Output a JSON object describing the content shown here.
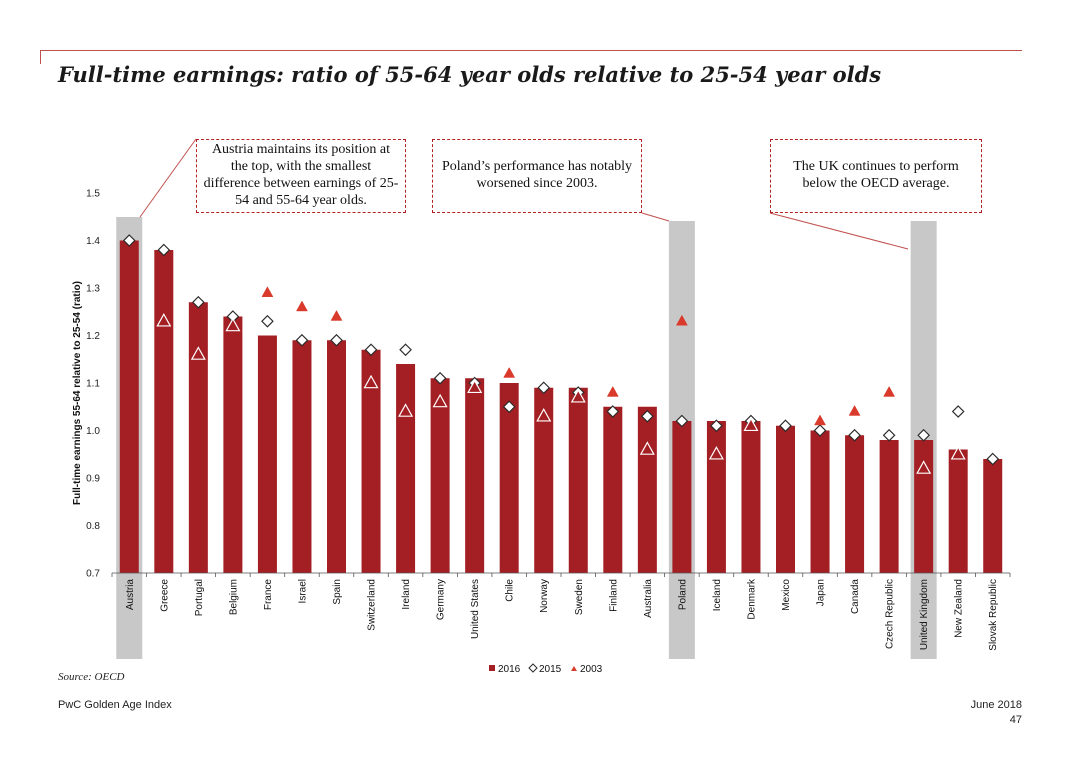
{
  "page": {
    "title": "Full-time earnings: ratio of 55-64 year olds relative to 25-54 year olds",
    "source": "Source: OECD",
    "footer_left": "PwC Golden Age Index",
    "footer_date": "June 2018",
    "page_number": "47"
  },
  "callouts": {
    "austria": "Austria maintains its position at the top, with the smallest difference between earnings of 25-54 and 55-64 year olds.",
    "poland": "Poland’s performance has notably worsened since 2003.",
    "uk": "The UK continues to perform below the OECD average."
  },
  "colors": {
    "bar_2016": "#a31f24",
    "marker_2003": "#d93a2b",
    "highlight": "#c8c8c8",
    "accent_line": "#c0504d"
  },
  "chart_data": {
    "type": "bar",
    "ylabel": "Full-time earnings 55-64 relative to 25-54 (ratio)",
    "xlabel": "",
    "ylim": [
      0.7,
      1.5
    ],
    "yticks": [
      "0.7",
      "0.8",
      "0.9",
      "1.0",
      "1.1",
      "1.2",
      "1.3",
      "1.4",
      "1.5"
    ],
    "grid": false,
    "legend_position": "bottom-center",
    "categories": [
      "Austria",
      "Greece",
      "Portugal",
      "Belgium",
      "France",
      "Israel",
      "Spain",
      "Switzerland",
      "Ireland",
      "Germany",
      "United States",
      "Chile",
      "Norway",
      "Sweden",
      "Finland",
      "Australia",
      "Poland",
      "Iceland",
      "Denmark",
      "Mexico",
      "Japan",
      "Canada",
      "Czech Republic",
      "United Kingdom",
      "New Zealand",
      "Slovak Republic"
    ],
    "highlighted": [
      "Austria",
      "Poland",
      "United Kingdom"
    ],
    "series": [
      {
        "name": "2016",
        "type": "bar",
        "marker": "bar",
        "values": [
          1.4,
          1.38,
          1.27,
          1.24,
          1.2,
          1.19,
          1.19,
          1.17,
          1.14,
          1.11,
          1.11,
          1.1,
          1.09,
          1.09,
          1.05,
          1.05,
          1.02,
          1.02,
          1.02,
          1.01,
          1.0,
          0.99,
          0.98,
          0.98,
          0.96,
          0.94
        ]
      },
      {
        "name": "2015",
        "type": "marker",
        "marker": "diamond",
        "values": [
          1.4,
          1.38,
          1.27,
          1.24,
          1.23,
          1.19,
          1.19,
          1.17,
          1.17,
          1.11,
          1.1,
          1.05,
          1.09,
          1.08,
          1.04,
          1.03,
          1.02,
          1.01,
          1.02,
          1.01,
          1.0,
          0.99,
          0.99,
          0.99,
          1.04,
          0.94
        ]
      },
      {
        "name": "2003",
        "type": "marker",
        "marker": "triangle",
        "values": [
          null,
          1.23,
          1.16,
          1.22,
          1.29,
          1.26,
          1.24,
          1.1,
          1.04,
          1.06,
          1.09,
          1.12,
          1.03,
          1.07,
          1.08,
          0.96,
          1.23,
          0.95,
          1.01,
          null,
          1.02,
          1.04,
          1.08,
          0.92,
          0.95,
          null
        ]
      }
    ]
  }
}
